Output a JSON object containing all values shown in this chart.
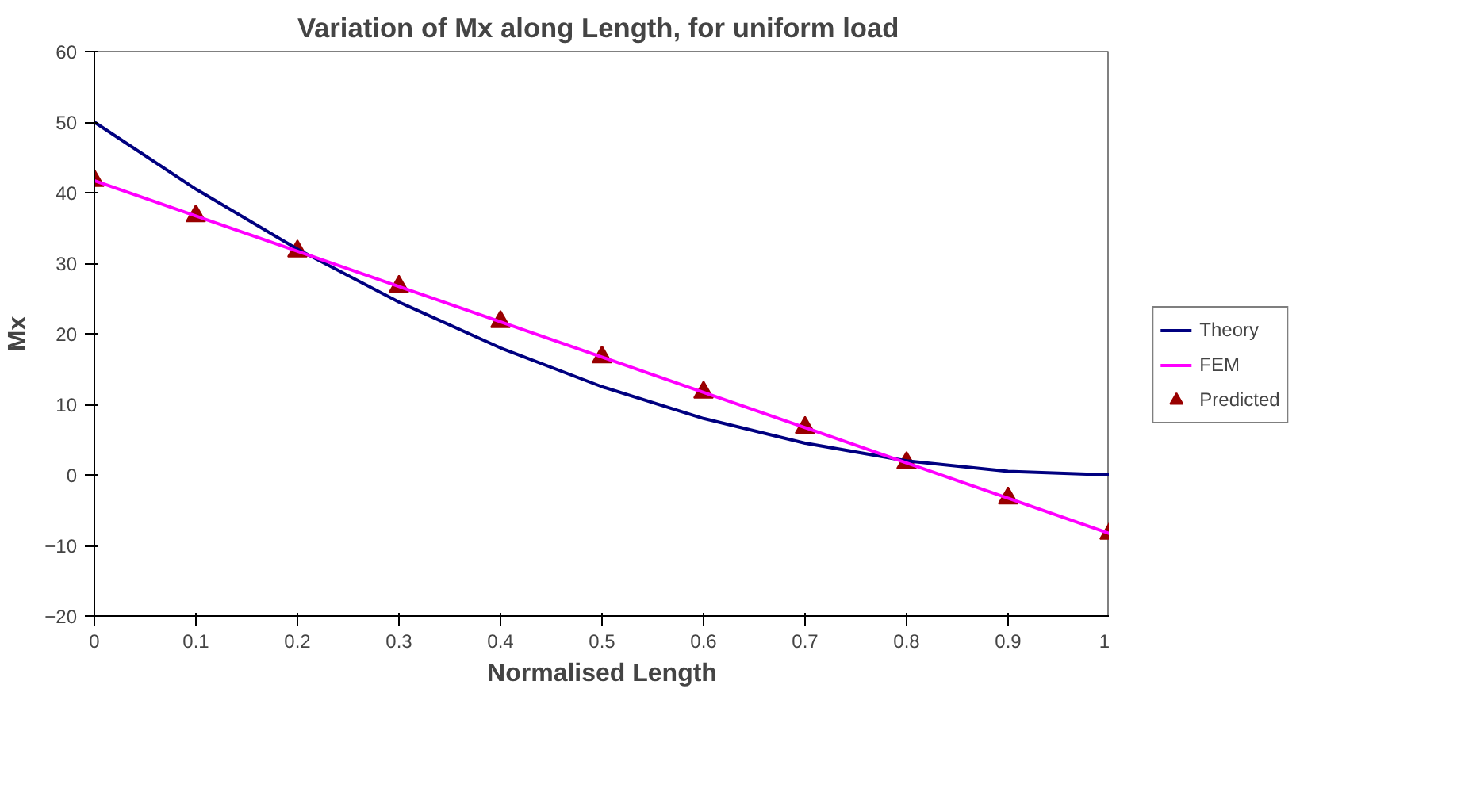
{
  "chart_data": {
    "type": "line",
    "title": "Variation of Mx along Length, for uniform  load",
    "xlabel": "Normalised Length",
    "ylabel": "Mx",
    "x": [
      0,
      0.1,
      0.2,
      0.3,
      0.4,
      0.5,
      0.6,
      0.7,
      0.8,
      0.9,
      1
    ],
    "series": [
      {
        "name": "Theory",
        "color": "#000080",
        "values": [
          50,
          40.5,
          32,
          24.5,
          18,
          12.5,
          8,
          4.5,
          2,
          0.5,
          0
        ]
      },
      {
        "name": "FEM",
        "color": "#ff00ff",
        "values": [
          41.7,
          36.7,
          31.7,
          26.7,
          21.7,
          16.7,
          11.7,
          6.7,
          1.7,
          -3.3,
          -8.3
        ]
      },
      {
        "name": "Predicted",
        "type": "scatter",
        "marker": "triangle",
        "color": "#990000",
        "values": [
          41.7,
          36.7,
          31.7,
          26.7,
          21.7,
          16.7,
          11.7,
          6.7,
          1.7,
          -3.3,
          -8.3
        ]
      }
    ],
    "xlim": [
      0,
      1
    ],
    "xticks": [
      0,
      0.1,
      0.2,
      0.3,
      0.4,
      0.5,
      0.6,
      0.7,
      0.8,
      0.9,
      1
    ],
    "ylim": [
      -20,
      60
    ],
    "yticks": [
      -20,
      -10,
      0,
      10,
      20,
      30,
      40,
      50,
      60
    ],
    "grid": false,
    "legend": "right",
    "marker": "none",
    "line_style": "solid"
  }
}
